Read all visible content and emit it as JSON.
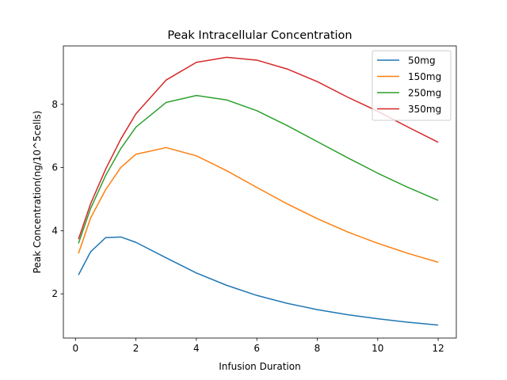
{
  "chart_data": {
    "type": "line",
    "title": "Peak Intracellular Concentration",
    "xlabel": "Infusion Duration",
    "ylabel": "Peak Concentration(ng/10^5cells)",
    "xlim": [
      -0.4,
      12.6
    ],
    "ylim": [
      0.6,
      9.85
    ],
    "xticks": [
      0,
      2,
      4,
      6,
      8,
      10,
      12
    ],
    "yticks": [
      2,
      4,
      6,
      8
    ],
    "grid": false,
    "legend_position": "top-right",
    "x": [
      0.1,
      0.5,
      1,
      1.5,
      2,
      3,
      4,
      5,
      6,
      7,
      8,
      9,
      10,
      11,
      12
    ],
    "series": [
      {
        "name": "50mg",
        "color": "#1f77b4",
        "values": [
          2.6,
          3.33,
          3.78,
          3.8,
          3.63,
          3.14,
          2.66,
          2.27,
          1.95,
          1.7,
          1.5,
          1.34,
          1.21,
          1.1,
          1.01
        ]
      },
      {
        "name": "150mg",
        "color": "#ff7f0e",
        "values": [
          3.28,
          4.4,
          5.3,
          6.0,
          6.42,
          6.63,
          6.37,
          5.9,
          5.37,
          4.85,
          4.38,
          3.96,
          3.6,
          3.28,
          3.0
        ]
      },
      {
        "name": "250mg",
        "color": "#2ca02c",
        "values": [
          3.6,
          4.7,
          5.75,
          6.6,
          7.28,
          8.06,
          8.28,
          8.14,
          7.8,
          7.33,
          6.82,
          6.31,
          5.82,
          5.37,
          4.96
        ]
      },
      {
        "name": "350mg",
        "color": "#d62728",
        "values": [
          3.73,
          4.85,
          5.95,
          6.9,
          7.7,
          8.77,
          9.33,
          9.49,
          9.4,
          9.12,
          8.72,
          8.23,
          7.78,
          7.28,
          6.8
        ]
      }
    ]
  }
}
